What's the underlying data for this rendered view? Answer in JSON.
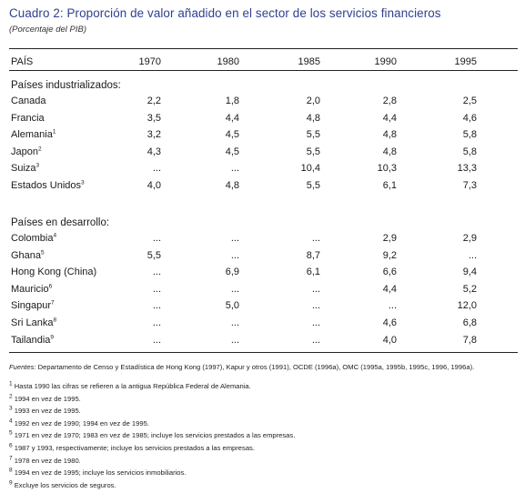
{
  "title": "Cuadro 2: Proporción de valor añadido en el sector de los servicios financieros",
  "subtitle": "(Porcentaje del PIB)",
  "columns": [
    "PAÍS",
    "1970",
    "1980",
    "1985",
    "1990",
    "1995"
  ],
  "sections": [
    {
      "heading": "Países industrializados:",
      "rows": [
        {
          "country": "Canada",
          "sup": "",
          "values": [
            "2,2",
            "1,8",
            "2,0",
            "2,8",
            "2,5"
          ]
        },
        {
          "country": "Francia",
          "sup": "",
          "values": [
            "3,5",
            "4,4",
            "4,8",
            "4,4",
            "4,6"
          ]
        },
        {
          "country": "Alemania",
          "sup": "1",
          "values": [
            "3,2",
            "4,5",
            "5,5",
            "4,8",
            "5,8"
          ]
        },
        {
          "country": "Japon",
          "sup": "2",
          "values": [
            "4,3",
            "4,5",
            "5,5",
            "4,8",
            "5,8"
          ]
        },
        {
          "country": "Suiza",
          "sup": "3",
          "values": [
            "...",
            "...",
            "10,4",
            "10,3",
            "13,3"
          ]
        },
        {
          "country": "Estados Unidos",
          "sup": "3",
          "values": [
            "4,0",
            "4,8",
            "5,5",
            "6,1",
            "7,3"
          ]
        }
      ]
    },
    {
      "heading": "Países en desarrollo:",
      "rows": [
        {
          "country": "Colombia",
          "sup": "4",
          "values": [
            "...",
            "...",
            "...",
            "2,9",
            "2,9"
          ]
        },
        {
          "country": "Ghana",
          "sup": "5",
          "values": [
            "5,5",
            "...",
            "8,7",
            "9,2",
            "..."
          ]
        },
        {
          "country": "Hong Kong (China)",
          "sup": "",
          "values": [
            "...",
            "6,9",
            "6,1",
            "6,6",
            "9,4"
          ]
        },
        {
          "country": "Mauricio",
          "sup": "6",
          "values": [
            "...",
            "...",
            "...",
            "4,4",
            "5,2"
          ]
        },
        {
          "country": "Singapur",
          "sup": "7",
          "values": [
            "...",
            "5,0",
            "...",
            "...",
            "12,0"
          ]
        },
        {
          "country": "Sri Lanka",
          "sup": "8",
          "values": [
            "...",
            "...",
            "...",
            "4,6",
            "6,8"
          ]
        },
        {
          "country": "Tailandia",
          "sup": "9",
          "values": [
            "...",
            "...",
            "...",
            "4,0",
            "7,8"
          ]
        }
      ]
    }
  ],
  "source": {
    "label": "Fuentes:",
    "text": " Departamento de Censo y Estadística de Hong Kong (1997), Kapur y otros (1991), OCDE (1996a), OMC (1995a, 1995b, 1995c, 1996, 1996a)."
  },
  "footnotes": [
    {
      "mark": "1",
      "text": " Hasta 1990 las cifras se refieren a la antigua República Federal de Alemania."
    },
    {
      "mark": "2",
      "text": " 1994 en vez de 1995."
    },
    {
      "mark": "3",
      "text": " 1993 en vez de 1995."
    },
    {
      "mark": "4",
      "text": " 1992 en vez de 1990; 1994 en vez de 1995."
    },
    {
      "mark": "5",
      "text": " 1971 en vez de 1970; 1983 en vez de 1985; incluye los servicios prestados a las empresas."
    },
    {
      "mark": "6",
      "text": " 1987 y 1993, respectivamente; incluye los servicios prestados a las empresas."
    },
    {
      "mark": "7",
      "text": " 1978 en vez de 1980."
    },
    {
      "mark": "8",
      "text": " 1994 en vez de 1995; incluye los servicios inmobiliarios."
    },
    {
      "mark": "9",
      "text": " Excluye los servicios de seguros."
    }
  ]
}
